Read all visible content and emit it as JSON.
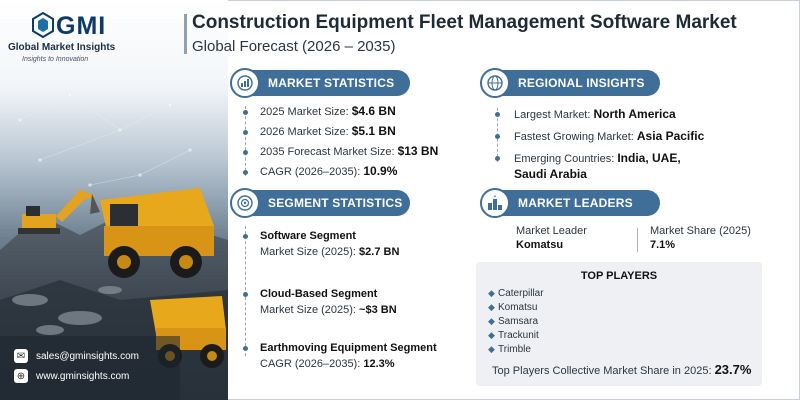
{
  "brand": {
    "logo_text": "GMI",
    "name": "Global Market Insights",
    "tagline": "Insights to Innovation"
  },
  "header": {
    "title": "Construction Equipment Fleet Management Software Market",
    "subtitle": "Global Forecast (2026 – 2035)"
  },
  "market_statistics": {
    "heading": "MARKET STATISTICS",
    "icon": "globe-chart-icon",
    "items": [
      {
        "label": "2025 Market Size:",
        "value": "$4.6 BN"
      },
      {
        "label": "2026 Market Size:",
        "value": "$5.1 BN"
      },
      {
        "label": "2035 Forecast Market Size:",
        "value": "$13 BN"
      },
      {
        "label": "CAGR (2026–2035):",
        "value": "10.9%"
      }
    ]
  },
  "regional_insights": {
    "heading": "REGIONAL INSIGHTS",
    "icon": "globe-icon",
    "largest_label": "Largest Market:",
    "largest_value": "North America",
    "fastest_label": "Fastest Growing Market:",
    "fastest_value": "Asia Pacific",
    "emerging_label": "Emerging Countries:",
    "emerging_value_1": "India, UAE,",
    "emerging_value_2": "Saudi Arabia"
  },
  "segment_statistics": {
    "heading": "SEGMENT STATISTICS",
    "icon": "segment-target-icon",
    "items": [
      {
        "title": "Software Segment",
        "label": "Market Size (2025):",
        "value": "$2.7 BN"
      },
      {
        "title": "Cloud-Based Segment",
        "label": "Market Size (2025):",
        "value": "~$3 BN"
      },
      {
        "title": "Earthmoving Equipment Segment",
        "label": "CAGR (2026–2035):",
        "value": "12.3%"
      }
    ]
  },
  "market_leaders": {
    "heading": "MARKET LEADERS",
    "icon": "leaderboard-icon",
    "leader_label": "Market Leader",
    "leader_value": "Komatsu",
    "share_label": "Market Share (2025)",
    "share_value": "7.1%"
  },
  "top_players": {
    "heading": "TOP PLAYERS",
    "items": [
      "Caterpillar",
      "Komatsu",
      "Samsara",
      "Trackunit",
      "Trimble"
    ],
    "total_label": "Top Players Collective Market Share in 2025:",
    "total_value": "23.7%"
  },
  "contact": {
    "email": "sales@gminsights.com",
    "website": "www.gminsights.com"
  },
  "colors": {
    "accent": "#3f6e98",
    "brand_navy": "#0d3b66",
    "box_bg": "#eef0f3"
  }
}
